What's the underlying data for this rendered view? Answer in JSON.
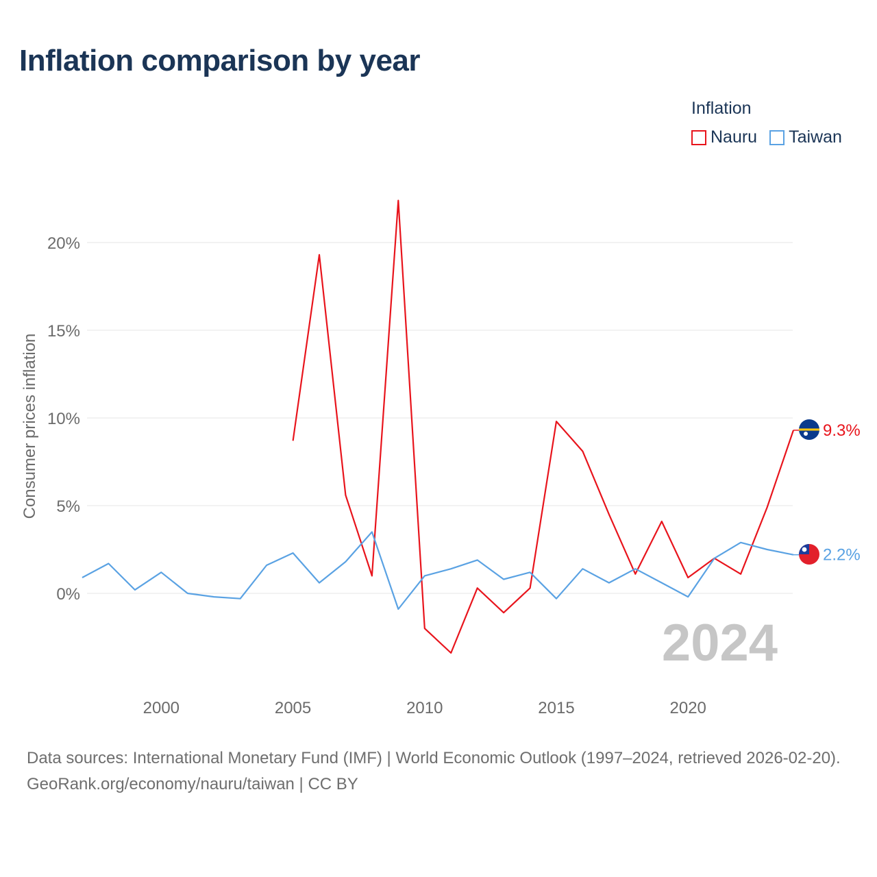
{
  "title": "Inflation comparison by year",
  "legend": {
    "title": "Inflation",
    "items": [
      {
        "label": "Nauru",
        "color": "#e8141c"
      },
      {
        "label": "Taiwan",
        "color": "#5aa2e3"
      }
    ]
  },
  "chart_data": {
    "type": "line",
    "title": "Inflation comparison by year",
    "xlabel": "",
    "ylabel": "Consumer prices inflation",
    "xlim": [
      1997,
      2024
    ],
    "ylim": [
      -5,
      24
    ],
    "y_ticks": [
      0,
      5,
      10,
      15,
      20
    ],
    "y_tick_labels": [
      "0%",
      "5%",
      "10%",
      "15%",
      "20%"
    ],
    "x_ticks": [
      2000,
      2005,
      2010,
      2015,
      2020
    ],
    "x_tick_labels": [
      "2000",
      "2005",
      "2010",
      "2015",
      "2020"
    ],
    "grid": true,
    "year_watermark": "2024",
    "series": [
      {
        "name": "Nauru",
        "color": "#e8141c",
        "end_label": "9.3%",
        "x": [
          2005,
          2006,
          2007,
          2008,
          2009,
          2010,
          2011,
          2012,
          2013,
          2014,
          2015,
          2016,
          2017,
          2018,
          2019,
          2020,
          2021,
          2022,
          2023,
          2024
        ],
        "values": [
          8.7,
          19.3,
          5.6,
          1.0,
          22.4,
          -2.0,
          -3.4,
          0.3,
          -1.1,
          0.3,
          9.8,
          8.1,
          4.5,
          1.1,
          4.1,
          0.9,
          2.0,
          1.1,
          4.9,
          9.3
        ]
      },
      {
        "name": "Taiwan",
        "color": "#5aa2e3",
        "end_label": "2.2%",
        "x": [
          1997,
          1998,
          1999,
          2000,
          2001,
          2002,
          2003,
          2004,
          2005,
          2006,
          2007,
          2008,
          2009,
          2010,
          2011,
          2012,
          2013,
          2014,
          2015,
          2016,
          2017,
          2018,
          2019,
          2020,
          2021,
          2022,
          2023,
          2024
        ],
        "values": [
          0.9,
          1.7,
          0.2,
          1.2,
          0.0,
          -0.2,
          -0.3,
          1.6,
          2.3,
          0.6,
          1.8,
          3.5,
          -0.9,
          1.0,
          1.4,
          1.9,
          0.8,
          1.2,
          -0.3,
          1.4,
          0.6,
          1.4,
          0.6,
          -0.2,
          2.0,
          2.9,
          2.5,
          2.2
        ]
      }
    ]
  },
  "footer": {
    "sources": "Data sources: International Monetary Fund (IMF) | World Economic Outlook (1997–2024, retrieved 2026-02-20).",
    "credit": "GeoRank.org/economy/nauru/taiwan | CC BY"
  }
}
